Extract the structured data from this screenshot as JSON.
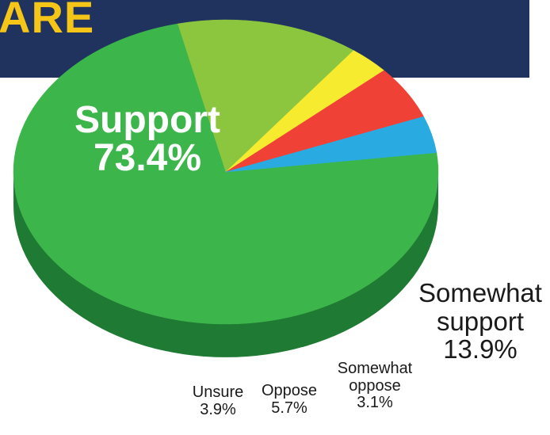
{
  "header": {
    "title": "ARE"
  },
  "chart_data": {
    "type": "pie",
    "title": "",
    "slices": [
      {
        "label_line1": "Support",
        "label_line2": "73.4%",
        "name": "Support",
        "value": 73.4,
        "color": "#3cb54a",
        "side": "#1f7a33"
      },
      {
        "label_line1": "Somewhat support",
        "label_line2": "13.9%",
        "name": "Somewhat support",
        "value": 13.9,
        "color": "#8cc63f",
        "side": "#4f7a22"
      },
      {
        "label_line1": "Somewhat oppose",
        "label_line2": "3.1%",
        "name": "Somewhat oppose",
        "value": 3.1,
        "color": "#f6eb2f",
        "side": "#a87a22"
      },
      {
        "label_line1": "Oppose",
        "label_line2": "5.7%",
        "name": "Oppose",
        "value": 5.7,
        "color": "#ef4136",
        "side": "#7d0f14"
      },
      {
        "label_line1": "Unsure",
        "label_line2": "3.9%",
        "name": "Unsure",
        "value": 3.9,
        "color": "#29abe2",
        "side": "#1a5e9c"
      }
    ],
    "legend": "none"
  }
}
